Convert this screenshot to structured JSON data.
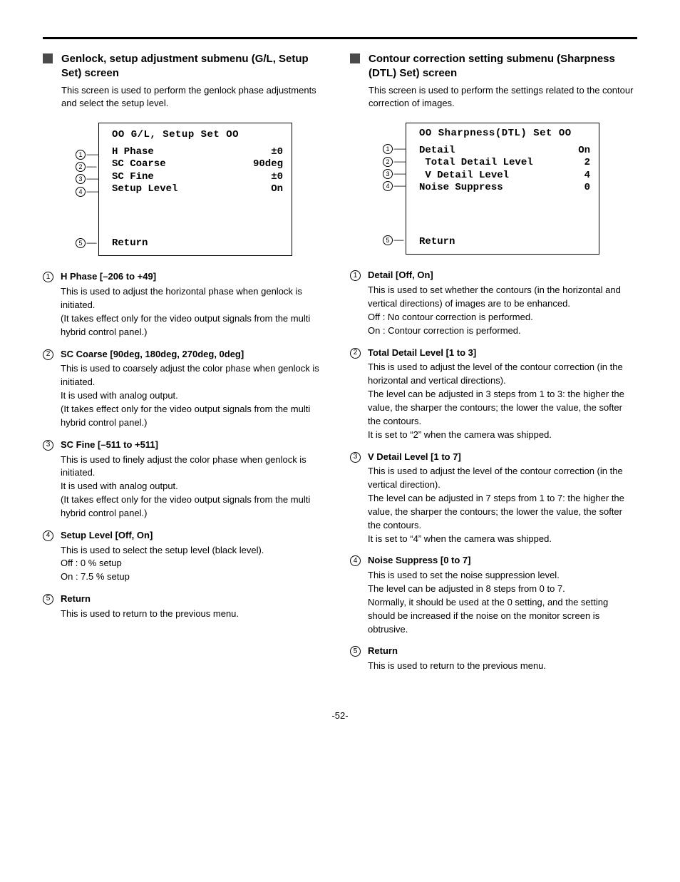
{
  "page_number": "-52-",
  "left": {
    "heading": "Genlock, setup adjustment submenu (G/L, Setup Set) screen",
    "sub": "This screen is used to perform the genlock phase adjustments and select the setup level.",
    "menu": {
      "title": "OO G/L, Setup Set OO",
      "rows": [
        {
          "label": "H Phase",
          "value": "±0"
        },
        {
          "label": "SC Coarse",
          "value": "90deg"
        },
        {
          "label": "SC Fine",
          "value": "±0"
        },
        {
          "label": "Setup Level",
          "value": "On"
        }
      ],
      "return": "Return",
      "callout_offsets": [
        38,
        55,
        72,
        90,
        162
      ],
      "box_height_extra": "tall"
    },
    "items": [
      {
        "n": "1",
        "title": "H Phase [–206 to +49]",
        "desc": "This is used to adjust the horizontal phase when genlock is initiated.\n(It takes effect only for the video output signals from the multi hybrid control panel.)"
      },
      {
        "n": "2",
        "title": "SC Coarse [90deg, 180deg, 270deg, 0deg]",
        "desc": "This is used to coarsely adjust the color phase when genlock is initiated.\nIt is used with analog output.\n(It takes effect only for the video output signals from the multi hybrid control panel.)"
      },
      {
        "n": "3",
        "title": "SC Fine [–511 to +511]",
        "desc": "This is used to finely adjust the color phase when genlock is initiated.\nIt is used with analog output.\n(It takes effect only for the video output signals from the multi hybrid control panel.)"
      },
      {
        "n": "4",
        "title": "Setup Level [Off, On]",
        "desc": "This is used to select the setup level (black level).\nOff : 0 % setup\nOn : 7.5 % setup"
      },
      {
        "n": "5",
        "title": "Return",
        "desc": "This is used to return to the previous menu."
      }
    ]
  },
  "right": {
    "heading": "Contour correction setting submenu (Sharpness (DTL) Set) screen",
    "sub": "This screen is used to perform the settings related to the contour correction of images.",
    "menu": {
      "title": "OO Sharpness(DTL) Set OO",
      "rows": [
        {
          "label": "Detail",
          "value": "On"
        },
        {
          "label": " Total Detail Level",
          "value": "2"
        },
        {
          "label": " V Detail Level",
          "value": "4"
        },
        {
          "label": "Noise Suppress",
          "value": "0"
        }
      ],
      "return": "Return",
      "callout_offsets": [
        30,
        48,
        65,
        82,
        158
      ],
      "box_height_extra": "short"
    },
    "items": [
      {
        "n": "1",
        "title": "Detail [Off, On]",
        "desc": "This is used to set whether the contours (in the horizontal and vertical directions) of images are to be enhanced.\nOff : No contour correction is performed.\nOn : Contour correction is performed."
      },
      {
        "n": "2",
        "title": "Total Detail Level [1 to 3]",
        "desc": "This is used to adjust the level of the contour correction (in the horizontal and vertical directions).\nThe level can be adjusted in 3 steps from 1 to 3: the higher the value, the sharper the contours; the lower the value, the softer the contours.\nIt is set to “2” when the camera was shipped."
      },
      {
        "n": "3",
        "title": "V Detail Level [1 to 7]",
        "desc": "This is used to adjust the level of the contour correction (in the vertical direction).\nThe level can be adjusted in 7 steps from 1 to 7: the higher the value, the sharper the contours; the lower the value, the softer the contours.\nIt is set to “4” when the camera was shipped."
      },
      {
        "n": "4",
        "title": "Noise Suppress [0 to 7]",
        "desc": "This is used to set the noise suppression level.\nThe level can be adjusted in 8 steps from 0 to 7.\nNormally, it should be used at the 0 setting, and the setting should be increased if the noise on the monitor screen is obtrusive."
      },
      {
        "n": "5",
        "title": "Return",
        "desc": "This is used to return to the previous menu."
      }
    ]
  }
}
